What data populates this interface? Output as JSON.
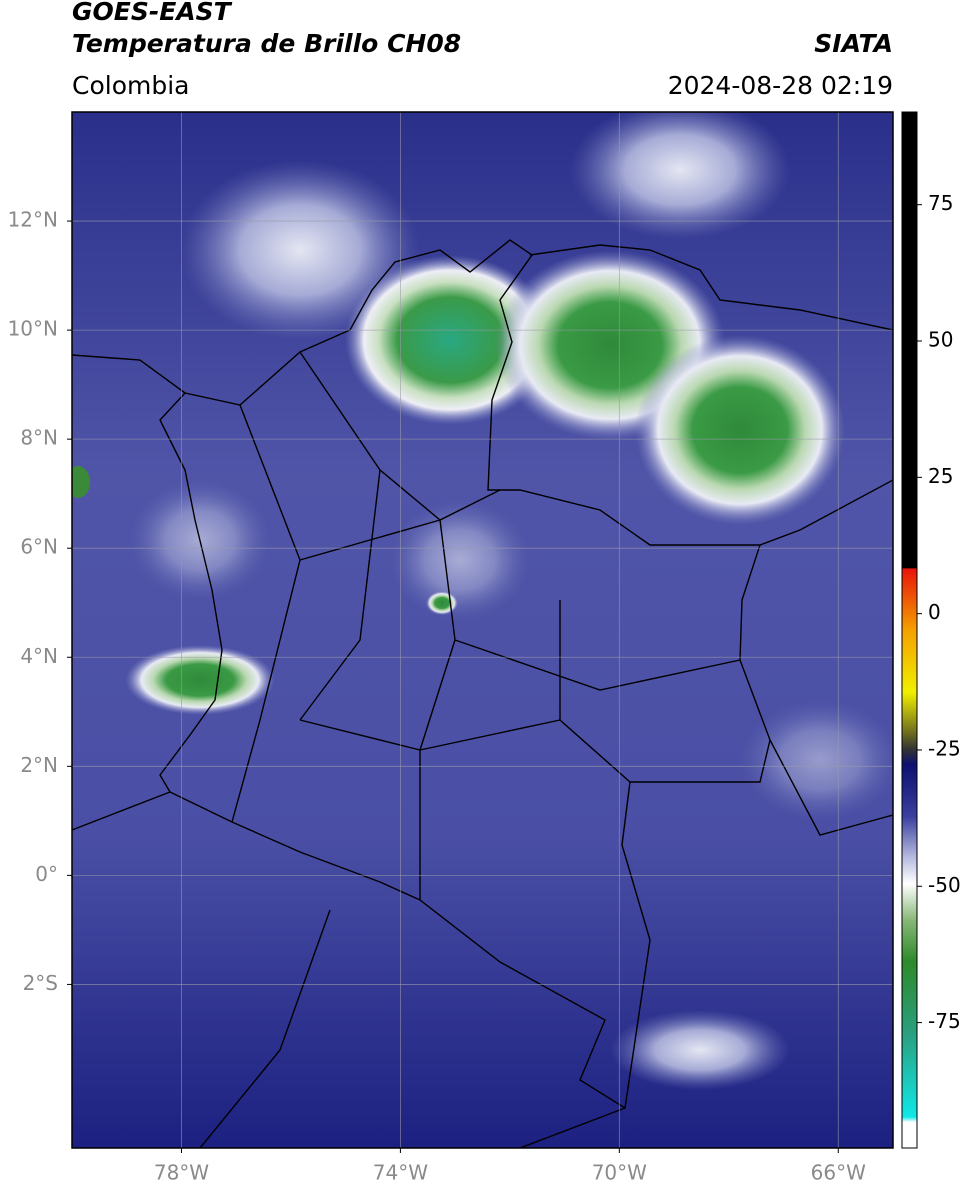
{
  "header": {
    "satellite": "GOES-EAST",
    "product": "Temperatura de Brillo CH08",
    "agency": "SIATA",
    "region": "Colombia",
    "datetime": "2024-08-28 02:19"
  },
  "map": {
    "xlim": [
      -80,
      -65
    ],
    "ylim": [
      -5,
      14
    ],
    "xticks": [
      {
        "value": -78,
        "label": "78°W"
      },
      {
        "value": -74,
        "label": "74°W"
      },
      {
        "value": -70,
        "label": "70°W"
      },
      {
        "value": -66,
        "label": "66°W"
      }
    ],
    "yticks": [
      {
        "value": 12,
        "label": "12°N"
      },
      {
        "value": 10,
        "label": "10°N"
      },
      {
        "value": 8,
        "label": "8°N"
      },
      {
        "value": 6,
        "label": "6°N"
      },
      {
        "value": 4,
        "label": "4°N"
      },
      {
        "value": 2,
        "label": "2°N"
      },
      {
        "value": 0,
        "label": "0°"
      },
      {
        "value": -2,
        "label": "2°S"
      }
    ],
    "grid": true
  },
  "colorbar": {
    "lim": [
      -98,
      92
    ],
    "ticks": [
      75,
      50,
      25,
      0,
      -25,
      -50,
      -75
    ]
  }
}
